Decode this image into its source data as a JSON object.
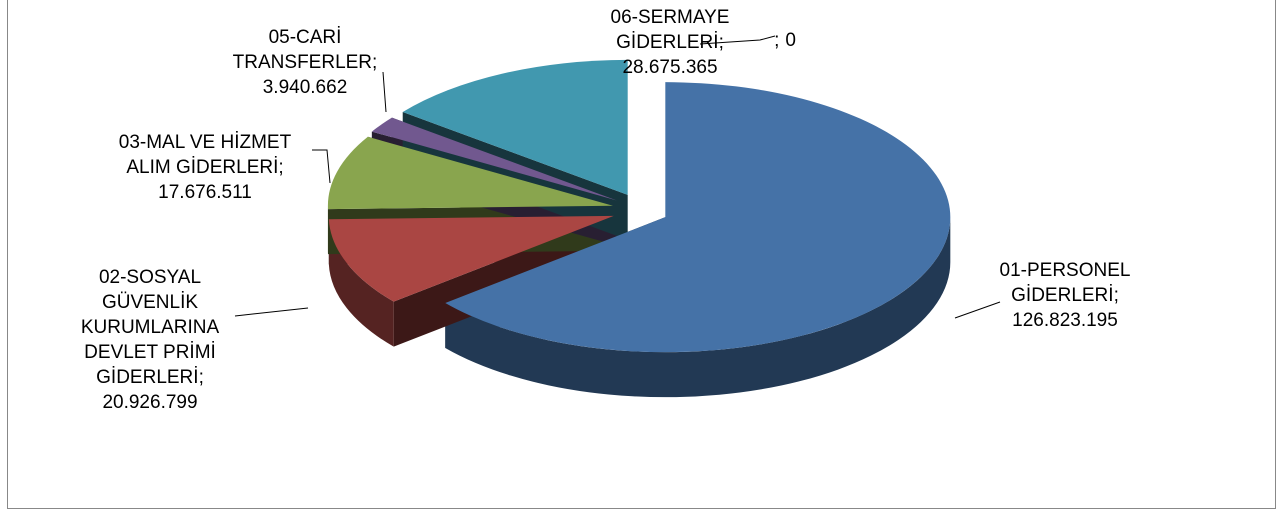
{
  "chart_data": {
    "type": "pie3d",
    "categories": [
      "01-PERSONEL GİDERLERİ",
      "02-SOSYAL GÜVENLİK KURUMLARINA DEVLET PRİMİ GİDERLERİ",
      "03-MAL VE HİZMET ALIM GİDERLERİ",
      "05-CARİ TRANSFERLER",
      "06-SERMAYE GİDERLERİ",
      null
    ],
    "values": [
      126823195,
      20926799,
      17676511,
      3940662,
      28675365,
      0
    ],
    "value_labels": [
      "126.823.195",
      "20.926.799",
      "17.676.511",
      "3.940.662",
      "28.675.365",
      "0"
    ],
    "separator": ";",
    "colors": [
      "#4572a7",
      "#aa4643",
      "#89a54e",
      "#71588f",
      "#4198af",
      "#db843d"
    ]
  }
}
